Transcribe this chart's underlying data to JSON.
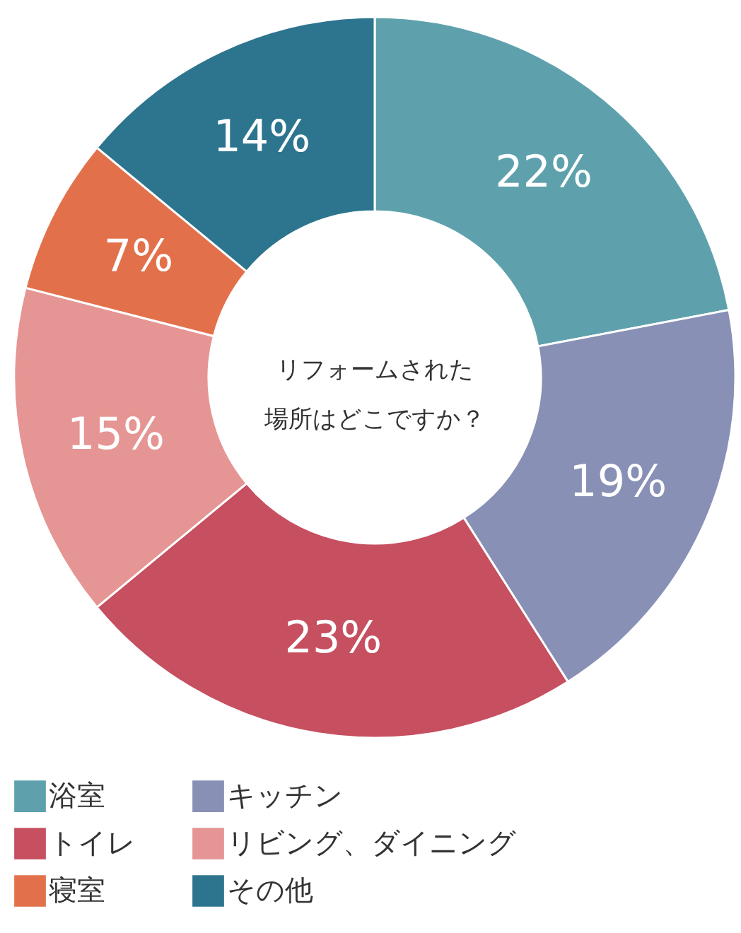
{
  "chart_data": {
    "type": "donut",
    "title": "リフォームされた場所はどこですか？",
    "categories": [
      "浴室",
      "キッチン",
      "トイレ",
      "リビング、ダイニング",
      "寝室",
      "その他"
    ],
    "values": [
      22,
      19,
      23,
      15,
      7,
      14
    ],
    "colors": [
      "#5ea1ad",
      "#8890b5",
      "#c64f60",
      "#e59593",
      "#e2714b",
      "#2d758f"
    ],
    "value_labels": [
      "22%",
      "19%",
      "23%",
      "15%",
      "7%",
      "14%"
    ],
    "legend": "bottom"
  }
}
